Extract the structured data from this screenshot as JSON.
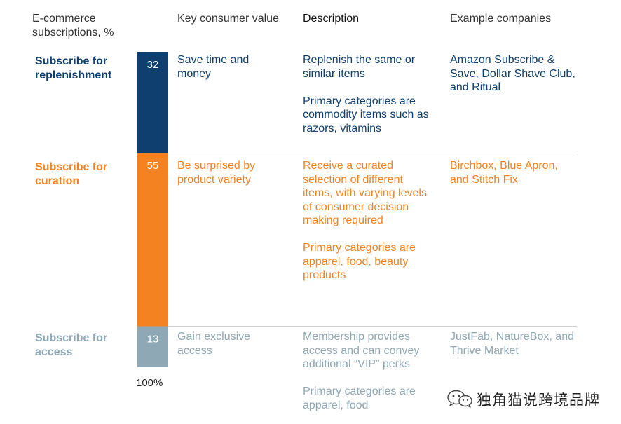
{
  "headers": {
    "col1": "E-commerce subscriptions, %",
    "col2": "Key consumer value",
    "col3": "Description",
    "col4": "Example companies"
  },
  "rows": [
    {
      "label": "Subscribe for replenishment",
      "value_label": "32",
      "color": "#0e3f6e",
      "value_text": "Save time and money",
      "description": [
        "Replenish the same or similar items",
        "Primary categories are commodity items such as razors, vitamins"
      ],
      "examples": "Amazon Subscribe & Save, Dollar Shave Club, and Ritual"
    },
    {
      "label": "Subscribe for curation",
      "value_label": "55",
      "color": "#f58220",
      "value_text": "Be surprised by product variety",
      "description": [
        "Receive a curated selection of different items, with varying levels of consumer decision making required",
        "Primary categories are apparel, food, beauty products"
      ],
      "examples": "Birchbox, Blue Apron, and Stitch Fix"
    },
    {
      "label": "Subscribe for access",
      "value_label": "13",
      "color": "#8fa8b5",
      "value_text": "Gain exclusive access",
      "description": [
        "Membership provides access and can convey additional “VIP” perks",
        "Primary categories are apparel, food"
      ],
      "examples": "JustFab, NatureBox, and Thrive Market"
    }
  ],
  "total_label": "100%",
  "watermark": "独角猫说跨境品牌",
  "chart_data": {
    "type": "bar",
    "title": "",
    "xlabel": "",
    "ylabel": "E-commerce subscriptions, %",
    "stacked": true,
    "categories": [
      "Subscribe for replenishment",
      "Subscribe for curation",
      "Subscribe for access"
    ],
    "values": [
      32,
      55,
      13
    ],
    "total": 100,
    "colors": [
      "#0e3f6e",
      "#f58220",
      "#8fa8b5"
    ]
  }
}
